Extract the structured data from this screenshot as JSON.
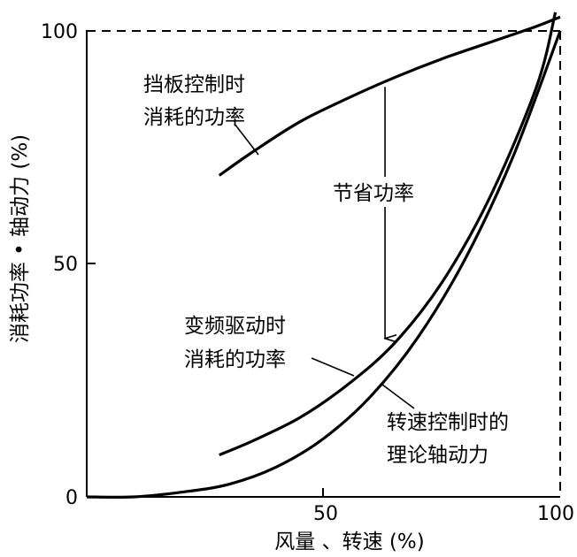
{
  "chart_data": {
    "type": "line",
    "xlabel": "风量 、转速 (%)",
    "ylabel": "消耗功率 • 轴动力 (%)",
    "xlim": [
      0,
      100
    ],
    "ylim": [
      0,
      100
    ],
    "x_ticks": [
      "50",
      "100"
    ],
    "y_ticks": [
      "0",
      "50",
      "100"
    ],
    "grid": false,
    "reference_box": "dashed lines at x = 100 and y = 100",
    "series": [
      {
        "label_lines": [
          "挡板控制时",
          "消耗的功率"
        ],
        "x": [
          28,
          35,
          45,
          55,
          65,
          75,
          85,
          95,
          100
        ],
        "y": [
          69,
          74,
          80.5,
          85.5,
          90,
          94,
          97.5,
          101,
          103
        ]
      },
      {
        "label_lines": [
          "变频驱动时",
          "消耗的功率"
        ],
        "x": [
          28,
          35,
          45,
          55,
          65,
          75,
          85,
          95,
          99
        ],
        "y": [
          9,
          12,
          17,
          24,
          33,
          46,
          64,
          88,
          104
        ]
      },
      {
        "label_lines": [
          "转速控制时的",
          "理论轴动力"
        ],
        "x": [
          0,
          10,
          20,
          30,
          40,
          50,
          60,
          70,
          80,
          90,
          100
        ],
        "y": [
          0,
          0,
          1,
          2.7,
          6.4,
          12.5,
          21.6,
          34.3,
          51.2,
          72.9,
          100
        ]
      }
    ],
    "annotation": {
      "text": "节省功率",
      "arrow_x": 63,
      "arrow_from_y": 88,
      "arrow_to_y": 34
    }
  }
}
